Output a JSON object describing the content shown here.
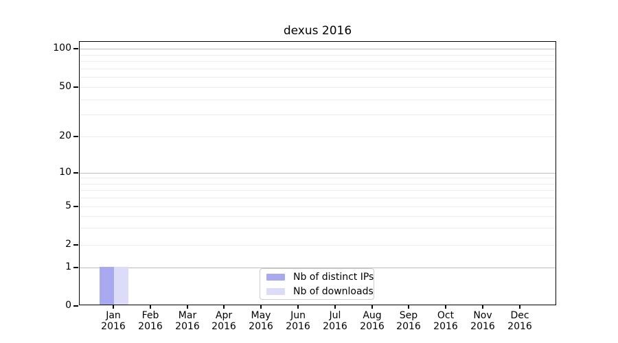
{
  "title": "dexus 2016",
  "chart_data": {
    "type": "bar",
    "title": "dexus 2016",
    "categories": [
      "Jan",
      "Feb",
      "Mar",
      "Apr",
      "May",
      "Jun",
      "Jul",
      "Aug",
      "Sep",
      "Oct",
      "Nov",
      "Dec"
    ],
    "category_year": "2016",
    "series": [
      {
        "name": "Nb of distinct IPs",
        "color": "#a9a9f0",
        "values": [
          1,
          0,
          0,
          0,
          0,
          0,
          0,
          0,
          0,
          0,
          0,
          0
        ]
      },
      {
        "name": "Nb of downloads",
        "color": "#dcdcf8",
        "values": [
          1,
          0,
          0,
          0,
          0,
          0,
          0,
          0,
          0,
          0,
          0,
          0
        ]
      }
    ],
    "y_ticks": [
      0,
      1,
      2,
      5,
      10,
      20,
      50,
      100
    ],
    "y_major_grid_values": [
      1,
      10,
      100
    ],
    "y_minor_grid_values": [
      2,
      5,
      20,
      50,
      3,
      4,
      6,
      7,
      8,
      9,
      30,
      40,
      60,
      70,
      80,
      90
    ],
    "ylim": [
      0,
      113
    ],
    "yscale": "symlog-like",
    "grid": "horizontal",
    "legend_position": "lower center"
  }
}
